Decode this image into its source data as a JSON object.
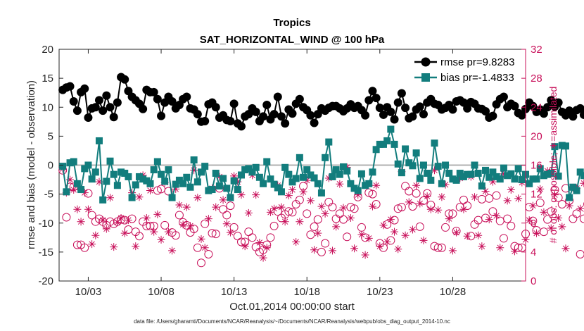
{
  "chart_data": {
    "type": "line",
    "title": "Tropics",
    "subtitle": "SAT_HORIZONTAL_WIND @ 100 hPa",
    "xlabel": "Oct.01,2014 00:00:00 start",
    "ylabel": "rmse and bias (model - observation)",
    "ylabel_right": "# of obs: o=possible; ∗=assimilated",
    "footer": "data file: /Users/gharamti/Documents/NCAR/Reanalysis/~/Documents/NCAR/Reanalysis/webpub/obs_diag_output_2014-10.nc",
    "xlim": [
      1,
      33
    ],
    "ylim": [
      -20,
      20
    ],
    "ylim_right": [
      0,
      32
    ],
    "x_ticks": [
      3,
      8,
      13,
      18,
      23,
      28
    ],
    "x_tick_labels": [
      "10/03",
      "10/08",
      "10/13",
      "10/18",
      "10/23",
      "10/28"
    ],
    "y_ticks": [
      -20,
      -15,
      -10,
      -5,
      0,
      5,
      10,
      15,
      20
    ],
    "y_tick_labels": [
      "-20",
      "-15",
      "-10",
      "-5",
      "0",
      "5",
      "10",
      "15",
      "20"
    ],
    "y_right_ticks": [
      0,
      4,
      8,
      12,
      16,
      20,
      24,
      28,
      32
    ],
    "y_right_tick_labels": [
      "0",
      "4",
      "8",
      "12",
      "16",
      "20",
      "24",
      "28",
      "32"
    ],
    "zero_line": 0,
    "legend_position": "top-right",
    "x_start": 1.25,
    "x_step": 0.25,
    "series": [
      {
        "name": "rmse pr=9.8283",
        "color": "#000000",
        "marker": "circle",
        "values": [
          13,
          13.4,
          13.6,
          11,
          9.4,
          12.6,
          13.2,
          8.2,
          9.8,
          10,
          11.2,
          9.4,
          12,
          10,
          8.3,
          10.8,
          15.2,
          14.8,
          12.8,
          11.8,
          11.2,
          10.6,
          9.7,
          13,
          12.6,
          12.6,
          11.4,
          8.5,
          10.8,
          11.8,
          11,
          9.8,
          10.4,
          11.4,
          11.8,
          9.8,
          9.6,
          8.8,
          7.5,
          7.6,
          10.5,
          10.8,
          10,
          8.2,
          8.6,
          7.8,
          7.6,
          10.6,
          7.2,
          6.7,
          8.4,
          8.8,
          9.8,
          9.2,
          7.6,
          8.4,
          10.4,
          7.9,
          8.8,
          11.8,
          8.4,
          7.2,
          9.6,
          8.9,
          10.6,
          11.4,
          10,
          9.5,
          8.6,
          7.3,
          8.8,
          9.8,
          9.4,
          9.9,
          10.2,
          10.2,
          9.8,
          9.3,
          9.8,
          10.5,
          9.9,
          10.2,
          9.5,
          8.6,
          11.2,
          12.8,
          11.6,
          9.9,
          8.7,
          10,
          9.2,
          7.9,
          10.8,
          12.4,
          9.9,
          8.1,
          8.4,
          9.6,
          10.1,
          8.8,
          10.8,
          11.4,
          10.6,
          10.4,
          9.6,
          9.9,
          10.4,
          9.6,
          11,
          11.2,
          10.8,
          9.8,
          10.9,
          10.6,
          9.8,
          9.7,
          9.3,
          8.2,
          8.5,
          10.5,
          11.4,
          11.8,
          10,
          10.6,
          10.2,
          9,
          8.6,
          9.7,
          10.8,
          10.2,
          9.2,
          9.6,
          8.9,
          10,
          11.2,
          10.1,
          10.8,
          9.2,
          8.6,
          9.4,
          8.4,
          9.5,
          9.8,
          8.7,
          9.8,
          9.7,
          10.4,
          10.5,
          8.4,
          9.9,
          8,
          8.5,
          8.9,
          9.2,
          10.2,
          10.5,
          12.4,
          9.8,
          10.6,
          9.8,
          9.3,
          8.8,
          9.8,
          9.4,
          11.4,
          8.3,
          9.6,
          8.8,
          11.7,
          10.4,
          10,
          9.6,
          10.2,
          10.9,
          11.2,
          11.8,
          10.4,
          11.4,
          8.5,
          10.3,
          9.5,
          10.6,
          10.8,
          8.3,
          8.2,
          9.2,
          8.4,
          7.9,
          7.6,
          8.2,
          8.7,
          10.5,
          8,
          7.2,
          6.6,
          7.2,
          9.6,
          10.4,
          10.4,
          9.4,
          10.2,
          10.6,
          9.7,
          8.4,
          6.4,
          6.6,
          7.2,
          8.4,
          9.2,
          9.7,
          9.9,
          8,
          7.4,
          7.1,
          6.9,
          9.7,
          10.7,
          11.4,
          8.5,
          9.4,
          10.3,
          10.3,
          9.7,
          9.7,
          9.9,
          10.2,
          11,
          9.6,
          8.8,
          10.3,
          8.2,
          8.7,
          7.9,
          7,
          8.1,
          9.8,
          9.8,
          8.8,
          8.4,
          8.2,
          10.2,
          9.7,
          9.8,
          9.1,
          9.5,
          9.6,
          11.2,
          9,
          10.4
        ]
      },
      {
        "name": "bias pr=-1.4833",
        "color": "#127d7d",
        "marker": "square",
        "values": [
          -0.2,
          -4.6,
          0.4,
          0.6,
          -3.2,
          -4.2,
          -0.6,
          0,
          -2.4,
          -1.2,
          4.2,
          -6,
          -2.8,
          0.7,
          -1.6,
          -3.5,
          -1.2,
          -1.4,
          -2,
          -5.6,
          -3.4,
          -2,
          -2.4,
          -2.7,
          -3.2,
          -0.8,
          0.6,
          -1.6,
          -2.8,
          -0.8,
          -5.6,
          -3.3,
          -2.6,
          -3.2,
          -2.1,
          -3.8,
          0.9,
          -2.9,
          -1.2,
          -0.2,
          -4.4,
          -4.2,
          -1.4,
          -3.6,
          -2.3,
          -4,
          -5.6,
          -2.7,
          -4.2,
          -1.7,
          -0.8,
          -0.6,
          -1.2,
          -0.4,
          -2.1,
          -3.2,
          0.6,
          -2.4,
          -3.3,
          -3.9,
          -4.6,
          -0.4,
          -1.6,
          -2.9,
          -2.3,
          1.3,
          -2.1,
          -0.8,
          -1.7,
          -2.2,
          -3.2,
          -4.8,
          1.3,
          4,
          -2,
          -0.8,
          -1.6,
          -0.3,
          -1,
          -3.2,
          -4,
          -4.4,
          -1.5,
          -3.5,
          -3.2,
          -1.2,
          2.7,
          3.6,
          3.6,
          4.2,
          6.2,
          3.6,
          0.2,
          -1.3,
          2.8,
          0.4,
          -0.1,
          2.1,
          -2.3,
          0,
          -1.4,
          -2.6,
          3.8,
          -0.2,
          -3.2,
          0,
          -1.4,
          -2.4,
          -2.6,
          -1.4,
          -2,
          -1.6,
          -1.6,
          0,
          -1.4,
          -3.6,
          -0.9,
          -2.1,
          -1.2,
          -2,
          -2.4,
          -0.5,
          -1.8,
          -1.5,
          -2.4,
          -0.6,
          -2.5,
          -1.6,
          -3.2,
          -2.4,
          -2.4,
          -0.6,
          -1.8,
          -1.6,
          -1.4,
          3.2,
          -1.9,
          3.4,
          3.3,
          -5.6,
          -3.8,
          -4.4,
          -1.2,
          -1.8,
          -1.8,
          -4.6,
          -1.6,
          -2.6,
          -1.2,
          -0.8,
          -2,
          -2.8,
          -2.9,
          -4.8,
          -2.2,
          -3.2,
          -2.8,
          -1,
          -2.2,
          -2.8,
          -3.2,
          -3.4,
          -2.2,
          -2.5,
          -1.6,
          -3.2,
          -1.6,
          -2.2,
          -1.2,
          -3,
          -2.4,
          -3.6,
          -2.4,
          -4.4,
          -4.3,
          -4.2,
          -2.2,
          -1.6,
          -3.8,
          -4.4,
          -2.8,
          -2.4,
          -2.4,
          -2.6,
          -3.2,
          0.6,
          -2.4,
          -3.8,
          -2.2,
          -2.6,
          -1.4,
          -2.2,
          -4.8,
          -1.8,
          -2.4,
          -4.2,
          -3.2,
          -2.7,
          -2.6,
          -1.8,
          -3.2,
          -2.2,
          -1.4,
          -3,
          -2.4,
          0.7,
          -3.2,
          -1.7,
          -4.1,
          -1.4,
          -3.2,
          -2.8,
          -2.1,
          -1.5,
          -5.8,
          -2.4,
          -1.9,
          -2.4,
          -2.7,
          -2.7,
          -1.8,
          -3.8,
          -1.5,
          -1.6,
          -2.4,
          -1.2,
          -2,
          -1.4,
          -3.5,
          -1.2,
          -0.4,
          2.6,
          -0.6,
          -1.3,
          -1.6,
          -3.4,
          -2.8,
          -0.4,
          -2.2,
          -0.2,
          -2.6,
          -1.5
        ]
      },
      {
        "name": "# of obs possible",
        "axis": "right",
        "color": "#c8105a",
        "marker": "open-circle",
        "values": [
          15.3,
          8.8,
          13,
          13,
          5,
          5,
          4.6,
          12.1,
          9.1,
          8.2,
          8.6,
          8.2,
          7.7,
          8.2,
          7.9,
          8.2,
          8.5,
          8.4,
          7.1,
          8.6,
          6.8,
          6.2,
          8.2,
          7.6,
          7.6,
          7.6,
          12.5,
          12.7,
          7.7,
          12.4,
          6.7,
          6.3,
          9.1,
          8.1,
          7.7,
          6.7,
          7.2,
          4.6,
          2.5,
          7.9,
          3.7,
          6.6,
          6.5,
          12.8,
          9.9,
          9.1,
          10.4,
          7.4,
          6.2,
          5.4,
          5.4,
          6.8,
          6,
          4.7,
          4,
          4.3,
          5,
          6,
          7.6,
          9.6,
          8.7,
          9.2,
          9.6,
          9.5,
          10.6,
          11.2,
          13.1,
          9.3,
          6.4,
          7.5,
          8.5,
          4,
          5.2,
          10.9,
          10.2,
          8.6,
          9.3,
          8.5,
          6.1,
          10.2,
          10,
          11.6,
          7.4,
          6,
          12.2,
          12,
          10.6,
          5.2,
          4.6,
          7.8,
          5.6,
          8.4,
          10,
          10.2,
          13.1,
          12.4,
          10.3,
          12.1,
          7.5,
          11.1,
          12.1,
          10.5,
          4.8,
          4.6,
          4.6,
          7.4,
          9.3,
          9.3,
          6.9,
          10.2,
          11.2,
          10.4,
          6.2,
          7.8,
          8.4,
          11.3,
          8.7,
          11.4,
          9.6,
          11.8,
          8.3,
          5.9,
          8.6,
          7.6,
          4.8,
          4.6,
          4.6,
          6.5,
          10.2,
          8.3,
          7,
          10.8,
          6.8,
          8.5,
          9.6,
          12.6,
          11.5,
          10.6,
          12.8,
          11.1,
          8.6,
          9.3,
          3.7,
          8.6,
          10.6,
          12.9,
          12.8,
          10.9,
          12.2,
          11.2,
          6.5,
          10.4,
          7.7,
          12.6,
          9.6,
          7.3,
          7.9,
          8.9,
          6.6,
          4.6,
          7.1,
          8.6,
          9,
          7.1,
          8.4,
          6.7,
          12.8,
          9.1,
          10.4,
          11.2,
          10.6,
          12.4,
          11.3,
          4.7,
          7.4,
          9.7,
          10.1,
          12.6,
          11.5,
          12.2,
          8.4,
          6,
          10.3,
          5.5,
          6.2,
          6.4,
          7.6,
          4.1,
          8.1,
          8.1,
          7.6,
          9.8,
          7.3,
          10.6,
          11.9,
          13.1,
          9.2,
          8.4,
          7.5,
          7.6,
          9.7,
          10.1,
          11.4,
          9.6,
          12.1,
          6.6,
          7.4,
          10.8,
          9.5,
          11.7,
          11.1,
          11.5,
          15.1,
          12.6,
          7.7,
          9.8,
          11.4,
          12.1,
          9.8,
          10.7,
          8.8,
          11,
          11,
          10.4,
          15.3,
          15.2,
          6.5,
          12.2,
          4.8,
          11.5,
          11.6,
          7.1,
          7,
          9.7,
          8.3,
          12.5,
          12.6,
          9.2,
          9.3,
          13.6,
          11.3,
          12.4,
          11.2,
          7.7,
          6.2,
          13.6,
          9.3
        ]
      },
      {
        "name": "# of obs assimilated",
        "axis": "right",
        "color": "#c8105a",
        "marker": "asterisk",
        "values": [
          15.5,
          12.2,
          14,
          12.6,
          9.9,
          8.2,
          12.2,
          9.9,
          5.1,
          6.3,
          13.7,
          8.4,
          7.2,
          11.5,
          4.7,
          8.1,
          8.7,
          6.6,
          8.4,
          12.2,
          4.8,
          11.6,
          14.6,
          8.7,
          12.5,
          6.8,
          9.2,
          5.7,
          13.6,
          6.8,
          4.2,
          12.7,
          10.5,
          7.8,
          10.2,
          7.6,
          15.3,
          11.5,
          5.8,
          4.6,
          8.6,
          12.8,
          10.2,
          14.4,
          11.2,
          7.9,
          6.7,
          14.5,
          13.7,
          11.9,
          4.8,
          9.4,
          14.6,
          11.9,
          5.3,
          3.2,
          4.6,
          9.5,
          10,
          13.2,
          10.2,
          8.2,
          11.8,
          12.6,
          5.4,
          8.2,
          12.3,
          13.9,
          11.1,
          4.3,
          6.6,
          10.3,
          9.3,
          14.2,
          4.2,
          7.5,
          13.4,
          10.1,
          15.7,
          8.7,
          4.5,
          11.9,
          6.4,
          3.6,
          5.9,
          10.3,
          13.2,
          4.8,
          7.7,
          5.4,
          8.5,
          6.8,
          4.4,
          15.1,
          6.3,
          10.9,
          7.1,
          13.2,
          10.7,
          5.6,
          11.7,
          9.9,
          15.3,
          9.8,
          11.6,
          13.3,
          8.6,
          4.2,
          6.7,
          14.2,
          9.9,
          6.2,
          14.4,
          11.6,
          6.3,
          4.8,
          12.4,
          8.5,
          13.7,
          9,
          4.6,
          14.8,
          11.1,
          12.6,
          4.1,
          11.4,
          13.6,
          5.7,
          8.4,
          10.4,
          6.6,
          12.7,
          9.5,
          15.2,
          7.3,
          11.9,
          8.7,
          7.5,
          4.5,
          10.4,
          12.9,
          12.8,
          10,
          13.5,
          9.6,
          4.6,
          11.8,
          7.1,
          11.5,
          8.7,
          6.4,
          14.6,
          15,
          13.1,
          4.8,
          7.1,
          13.5,
          4.1,
          5.3,
          7.4,
          14.1,
          13.2,
          11.2,
          15.5,
          12.9,
          13.2,
          5.5,
          4.2,
          11.1,
          15.1,
          6.7,
          3.6,
          7.5,
          14.1,
          13.9,
          11.8,
          15.2,
          12.3,
          12.8,
          8.2,
          12.7,
          6.8,
          9.6,
          10.8,
          11.1,
          10.9,
          13.8,
          8.6,
          13.5,
          9.9,
          12.4,
          5.5,
          13.4,
          6.9,
          4.1,
          8.6,
          11.4,
          4.4,
          5.6,
          13.4,
          7.9,
          13.1,
          5.6,
          3.6,
          3.7,
          9.6,
          12.3,
          9.3,
          6.1,
          5.3,
          15.4,
          12.1,
          14.3,
          14.8,
          5.2,
          4.6,
          14.3,
          10.6,
          8.7,
          14.3,
          7.4,
          6.5,
          7.3,
          4.5,
          5.3,
          14.1,
          5.8,
          11.3,
          6.8,
          4.8,
          13.3,
          10.9,
          15.1,
          15.4,
          12.4,
          11.4,
          4.7,
          10.2,
          9.8,
          6.5,
          9.7,
          14.2,
          14.4,
          11.6,
          4.4,
          14.2,
          9.4
        ]
      }
    ]
  }
}
